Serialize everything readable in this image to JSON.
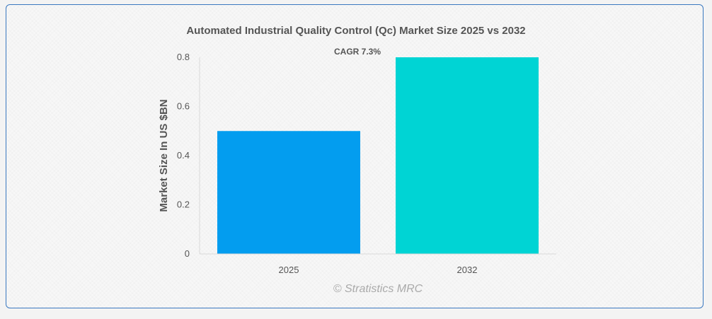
{
  "chart_data": {
    "type": "bar",
    "title": "Automated Industrial Quality Control (Qc) Market Size 2025 vs 2032",
    "categories": [
      "2025",
      "2032"
    ],
    "values": [
      0.5,
      0.8
    ],
    "ylabel": "Market Size In US $BN",
    "xlabel": "",
    "ylim": [
      0,
      0.8
    ],
    "yticks": [
      "0",
      "0.2",
      "0.4",
      "0.6",
      "0.8"
    ],
    "annotation": "CAGR 7.3%",
    "grid": false,
    "bar_colors": [
      "#039def",
      "#00d4d4"
    ]
  },
  "watermark": "© Stratistics MRC",
  "colors": {
    "border": "#3a78c0",
    "text": "#555555",
    "axis": "#d9d9d9"
  }
}
